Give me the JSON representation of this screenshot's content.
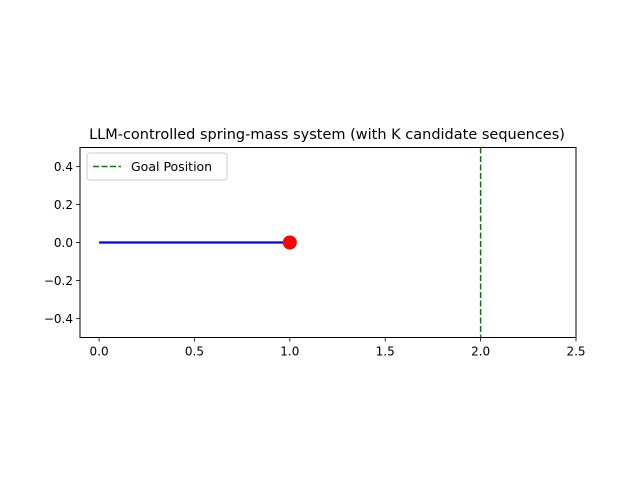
{
  "chart_data": {
    "type": "line",
    "title": "LLM-controlled spring-mass system (with K candidate sequences)",
    "xlabel": "",
    "ylabel": "",
    "xlim": [
      -0.1,
      2.5
    ],
    "ylim": [
      -0.5,
      0.5
    ],
    "x_ticks": [
      0.0,
      0.5,
      1.0,
      1.5,
      2.0,
      2.5
    ],
    "x_tick_labels": [
      "0.0",
      "0.5",
      "1.0",
      "1.5",
      "2.0",
      "2.5"
    ],
    "y_ticks": [
      -0.4,
      -0.2,
      0.0,
      0.2,
      0.4
    ],
    "y_tick_labels": [
      "−0.4",
      "−0.2",
      "0.0",
      "0.2",
      "0.4"
    ],
    "grid": false,
    "legend_position": "upper-left",
    "spring": {
      "x": [
        0.0,
        1.0
      ],
      "y": [
        0.0,
        0.0
      ],
      "color": "#0000ff"
    },
    "mass": {
      "x": 1.0,
      "y": 0.0,
      "color": "#ff0000"
    },
    "goal": {
      "name": "Goal Position",
      "x": 2.0,
      "color": "#008000",
      "style": "dashed"
    }
  }
}
